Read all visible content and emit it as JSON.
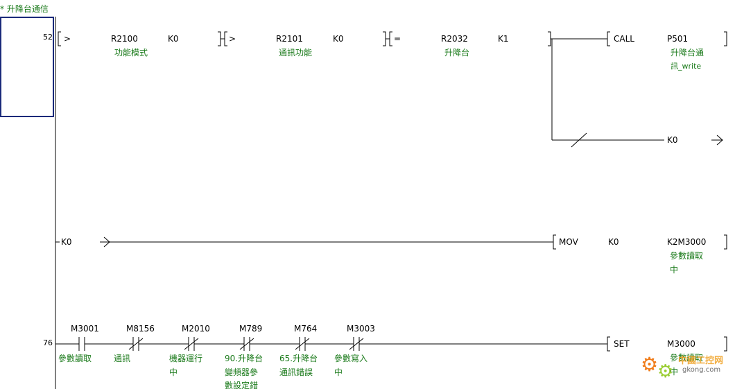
{
  "program": {
    "block_title": "* 升降台通信"
  },
  "rungs": [
    {
      "step": "52",
      "compares": [
        {
          "op": ">",
          "operand1": "R2100",
          "comment1": "功能模式",
          "operand2": "K0"
        },
        {
          "op": ">",
          "operand1": "R2101",
          "comment1": "通訊功能",
          "operand2": "K0"
        },
        {
          "op": "=",
          "operand1": "R2032",
          "comment1": "升降台",
          "operand2": "K1"
        }
      ],
      "call": {
        "instruction": "CALL",
        "operand": "P501",
        "comment_line1": "升降台通",
        "comment_line2": "訊_write"
      },
      "branch_output": "K0"
    },
    {
      "input_label": "K0",
      "mov": {
        "instruction": "MOV",
        "source": "K0",
        "dest": "K2M3000",
        "dest_comment_line1": "參數讀取",
        "dest_comment_line2": "中"
      }
    },
    {
      "step": "76",
      "contacts": [
        {
          "device": "M3001",
          "type": "NO",
          "comment": [
            "參數讀取"
          ]
        },
        {
          "device": "M8156",
          "type": "NC",
          "comment": [
            "通訊"
          ]
        },
        {
          "device": "M2010",
          "type": "NC",
          "comment": [
            "機器運行",
            "中"
          ]
        },
        {
          "device": "M789",
          "type": "NC",
          "comment": [
            "90.升降台",
            "變頻器參",
            "數設定錯"
          ]
        },
        {
          "device": "M764",
          "type": "NC",
          "comment": [
            "65.升降台",
            "通訊錯誤"
          ]
        },
        {
          "device": "M3003",
          "type": "NC",
          "comment": [
            "參數寫入",
            "中"
          ]
        }
      ],
      "set": {
        "instruction": "SET",
        "device": "M3000",
        "comment_line1": "參數讀取",
        "comment_line2": "中"
      }
    }
  ],
  "watermark": {
    "name": "中國工控网",
    "url": "gkong.com"
  },
  "colors": {
    "line": "#000000",
    "comment": "#1a7a1a",
    "selection": "#1a2a7a"
  }
}
